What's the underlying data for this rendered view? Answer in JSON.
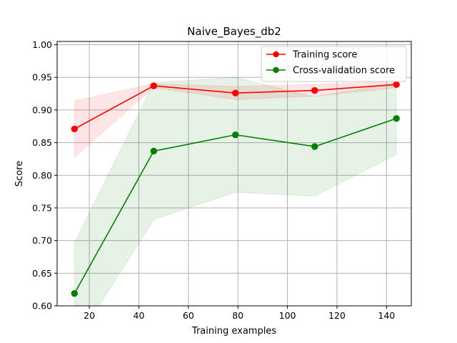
{
  "chart_data": {
    "type": "line",
    "title": "Naive_Bayes_db2",
    "xlabel": "Training examples",
    "ylabel": "Score",
    "xlim": [
      7,
      150
    ],
    "ylim": [
      0.6,
      1.005
    ],
    "x_ticks": [
      20,
      40,
      60,
      80,
      100,
      120,
      140
    ],
    "y_ticks": [
      0.6,
      0.65,
      0.7,
      0.75,
      0.8,
      0.85,
      0.9,
      0.95,
      1.0
    ],
    "x_tick_labels": [
      "20",
      "40",
      "60",
      "80",
      "100",
      "120",
      "140"
    ],
    "y_tick_labels": [
      "0.60",
      "0.65",
      "0.70",
      "0.75",
      "0.80",
      "0.85",
      "0.90",
      "0.95",
      "1.00"
    ],
    "grid": true,
    "legend_position": "top-right",
    "x": [
      14,
      46,
      79,
      111,
      144
    ],
    "series": [
      {
        "name": "Training score",
        "color": "#ff0000",
        "values": [
          0.871,
          0.937,
          0.926,
          0.93,
          0.939
        ],
        "lower": [
          0.828,
          0.934,
          0.916,
          0.921,
          0.934
        ],
        "upper": [
          0.914,
          0.94,
          0.936,
          0.939,
          0.944
        ]
      },
      {
        "name": "Cross-validation score",
        "color": "#008000",
        "values": [
          0.619,
          0.837,
          0.862,
          0.844,
          0.887
        ],
        "lower": [
          0.541,
          0.732,
          0.774,
          0.768,
          0.832
        ],
        "upper": [
          0.697,
          0.942,
          0.95,
          0.92,
          0.942
        ]
      }
    ]
  }
}
